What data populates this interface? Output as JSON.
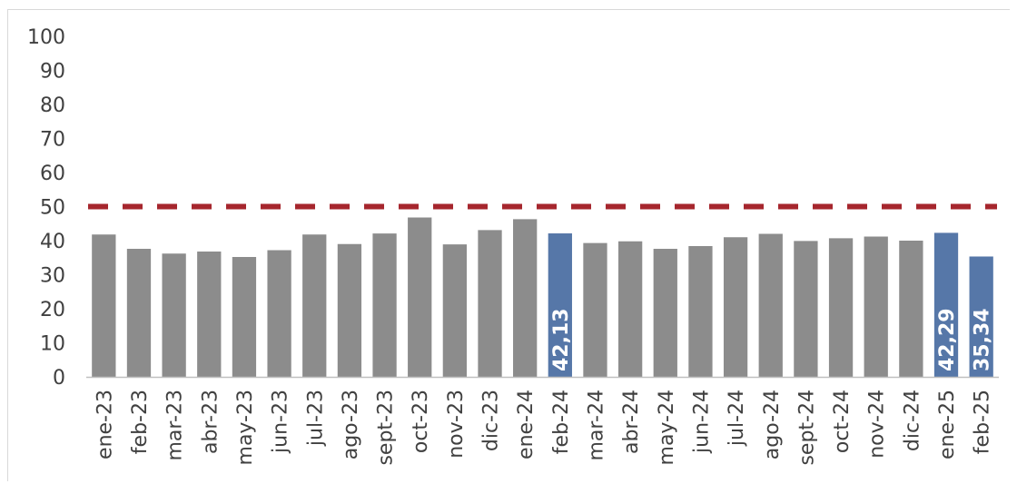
{
  "chart_data": {
    "type": "bar",
    "title": "",
    "xlabel": "",
    "ylabel": "",
    "ylim": [
      0,
      100
    ],
    "yticks": [
      0,
      10,
      20,
      30,
      40,
      50,
      60,
      70,
      80,
      90,
      100
    ],
    "categories": [
      "ene-23",
      "feb-23",
      "mar-23",
      "abr-23",
      "may-23",
      "jun-23",
      "jul-23",
      "ago-23",
      "sept-23",
      "oct-23",
      "nov-23",
      "dic-23",
      "ene-24",
      "feb-24",
      "mar-24",
      "abr-24",
      "may-24",
      "jun-24",
      "jul-24",
      "ago-24",
      "sept-24",
      "oct-24",
      "nov-24",
      "dic-24",
      "ene-25",
      "feb-25"
    ],
    "values": [
      41.8,
      37.6,
      36.2,
      36.8,
      35.2,
      37.2,
      41.8,
      39.0,
      42.1,
      46.8,
      38.9,
      43.1,
      46.3,
      42.13,
      39.3,
      39.8,
      37.6,
      38.4,
      41.0,
      42.0,
      39.9,
      40.7,
      41.2,
      40.0,
      42.29,
      35.34
    ],
    "highlighted": [
      "feb-24",
      "ene-25",
      "feb-25"
    ],
    "data_labels": {
      "feb-24": "42,13",
      "ene-25": "42,29",
      "feb-25": "35,34"
    },
    "reference_line": {
      "value": 50,
      "style": "dashed",
      "color": "#a6262d"
    },
    "colors": {
      "bar": "#8c8c8c",
      "highlight": "#5677a8",
      "axis": "#bfbfbf",
      "text": "#404040"
    },
    "grid": false,
    "legend": "none"
  }
}
